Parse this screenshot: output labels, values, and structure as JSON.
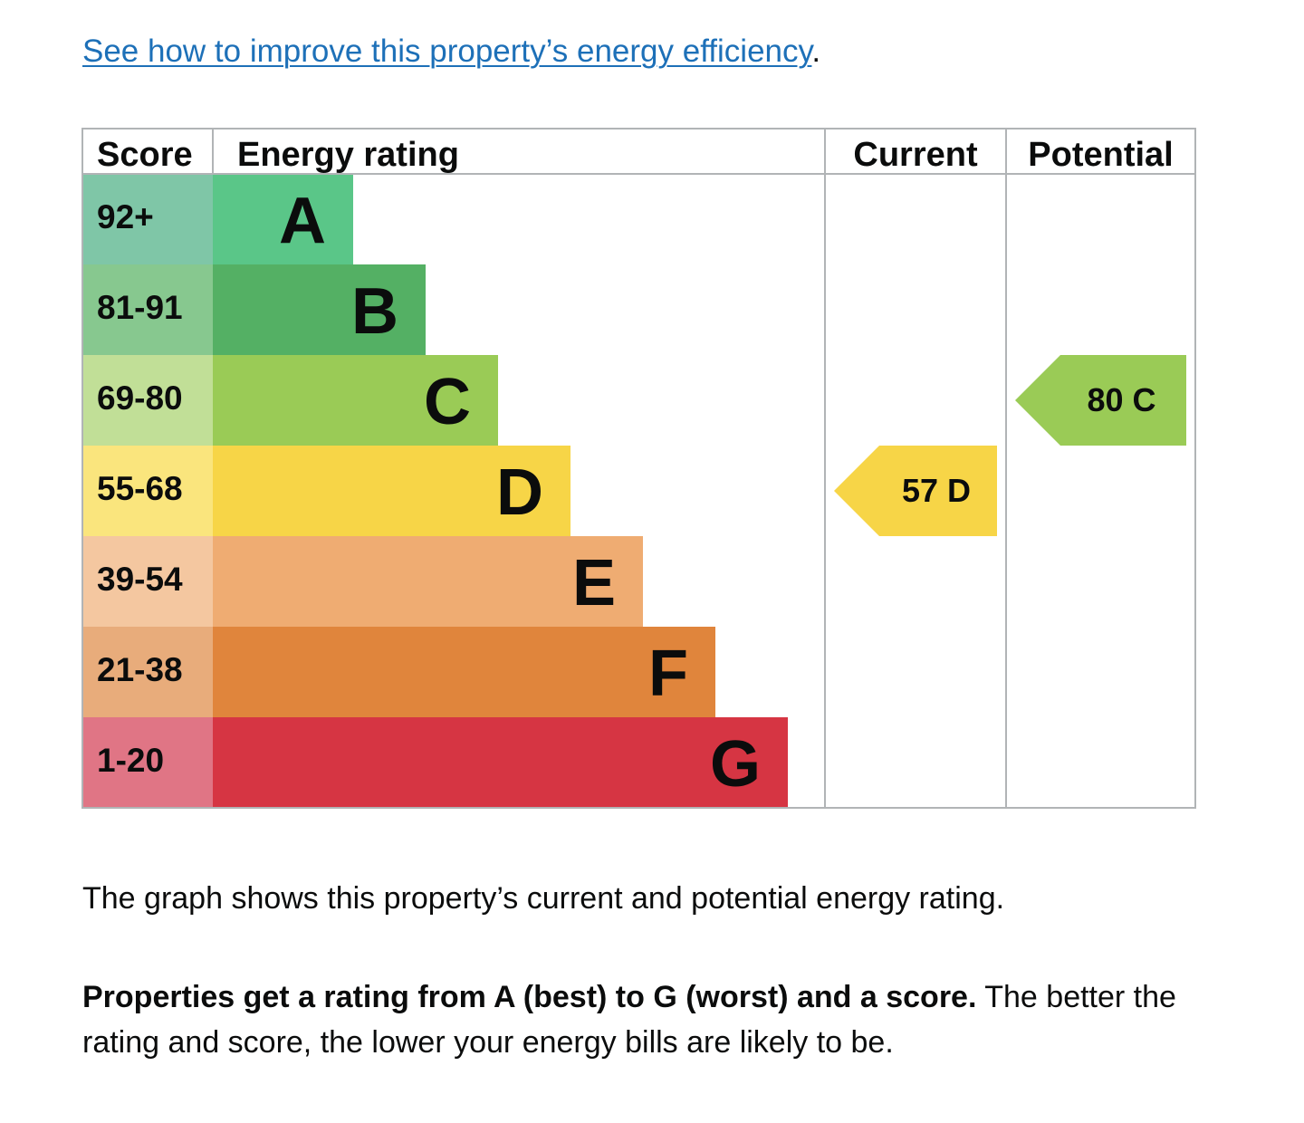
{
  "link": {
    "text": "See how to improve this property’s energy efficiency",
    "trailing": "."
  },
  "chart_data": {
    "type": "bar",
    "headers": {
      "score": "Score",
      "rating": "Energy rating",
      "current": "Current",
      "potential": "Potential"
    },
    "bands": [
      {
        "letter": "A",
        "range": "92+",
        "color": "#5ac688",
        "score_color": "#7fc6a7"
      },
      {
        "letter": "B",
        "range": "81-91",
        "color": "#54b064",
        "score_color": "#87c88f"
      },
      {
        "letter": "C",
        "range": "69-80",
        "color": "#9acb56",
        "score_color": "#c1df97"
      },
      {
        "letter": "D",
        "range": "55-68",
        "color": "#f7d547",
        "score_color": "#fae57d"
      },
      {
        "letter": "E",
        "range": "39-54",
        "color": "#efac72",
        "score_color": "#f4c7a0"
      },
      {
        "letter": "F",
        "range": "21-38",
        "color": "#e0853c",
        "score_color": "#e8ac7b"
      },
      {
        "letter": "G",
        "range": "1-20",
        "color": "#d63543",
        "score_color": "#e07585"
      }
    ],
    "current": {
      "score": 57,
      "letter": "D",
      "label": "57  D",
      "color": "#f7d547"
    },
    "potential": {
      "score": 80,
      "letter": "C",
      "label": "80  C",
      "color": "#9acb56"
    }
  },
  "paragraph1": "The graph shows this property’s current and potential energy rating.",
  "paragraph2": {
    "bold": "Properties get a rating from A (best) to G (worst) and a score.",
    "rest": " The better the rating and score, the lower your energy bills are likely to be."
  }
}
